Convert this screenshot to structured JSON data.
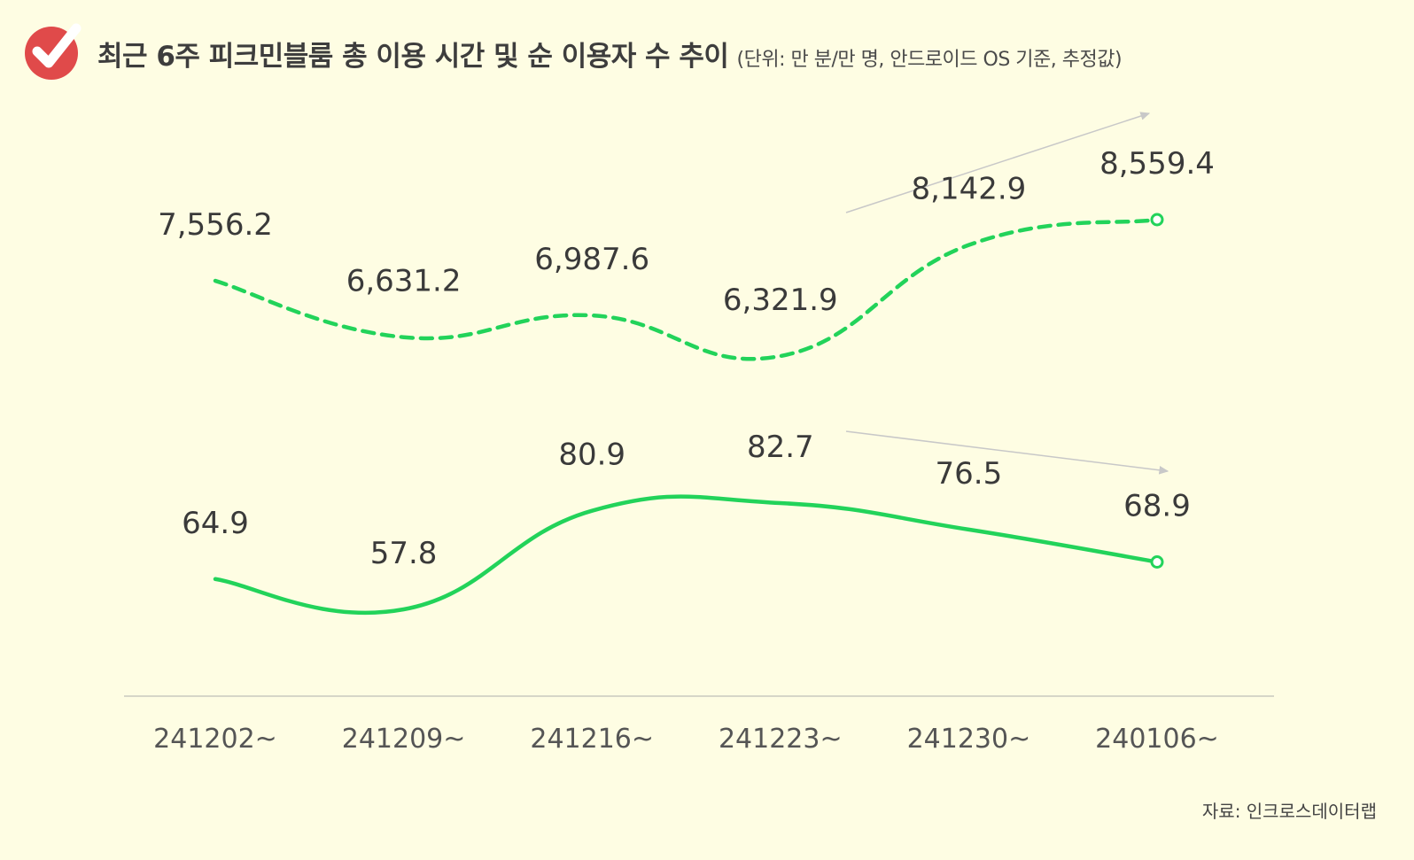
{
  "header": {
    "title": "최근 6주 피크민블룸 총 이용 시간 및 순 이용자 수 추이",
    "subtitle": "(단위: 만 분/만 명, 안드로이드 OS 기준, 추정값)"
  },
  "source": "자료: 인크로스데이터랩",
  "colors": {
    "background": "#fefde3",
    "line": "#22d35a",
    "badge": "#e04a4a",
    "axis": "#d6d6c8",
    "arrow": "#c8c8c8",
    "text": "#3a3a3a"
  },
  "chart_data": {
    "type": "line",
    "categories": [
      "241202~",
      "241209~",
      "241216~",
      "241223~",
      "241230~",
      "240106~"
    ],
    "series": [
      {
        "style": "dashed",
        "values": [
          7556.2,
          6631.2,
          6987.6,
          6321.9,
          8142.9,
          8559.4
        ],
        "labels": [
          "7,556.2",
          "6,631.2",
          "6,987.6",
          "6,321.9",
          "8,142.9",
          "8,559.4"
        ],
        "trend": "up"
      },
      {
        "style": "solid",
        "values": [
          64.9,
          57.8,
          80.9,
          82.7,
          76.5,
          68.9
        ],
        "labels": [
          "64.9",
          "57.8",
          "80.9",
          "82.7",
          "76.5",
          "68.9"
        ],
        "trend": "down"
      }
    ],
    "xlabel": "",
    "ylabel": "",
    "grid": false,
    "legend": "none"
  }
}
